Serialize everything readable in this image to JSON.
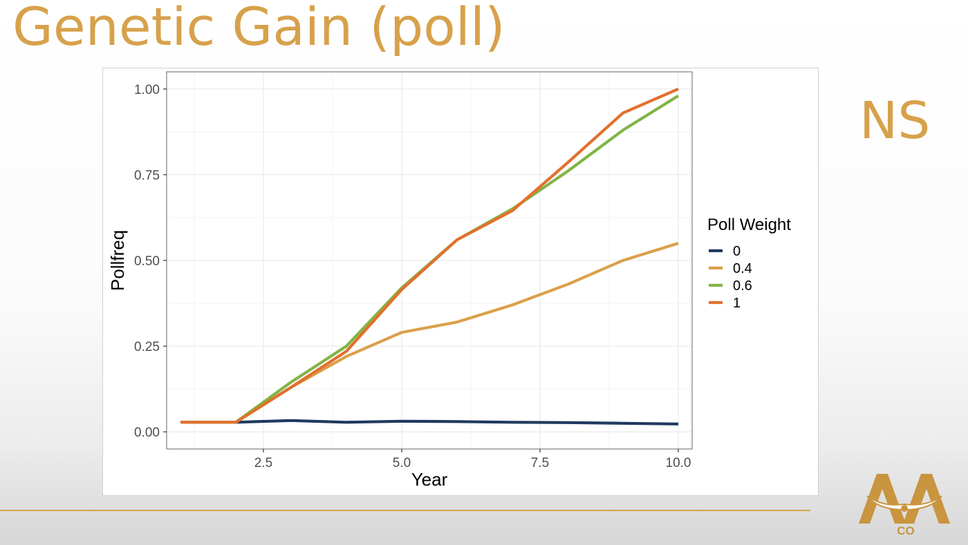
{
  "slide": {
    "title": "Genetic Gain (poll)",
    "side_label": "NS",
    "logo_text": "CO"
  },
  "colors": {
    "accent": "#d7a14b",
    "series_0": "#1f3a5f",
    "series_0_4": "#dba04a",
    "series_0_6": "#82b446",
    "series_1": "#e2702e",
    "grid": "#ebebeb",
    "panel_border": "#7f7f7f"
  },
  "chart_data": {
    "type": "line",
    "title": "",
    "xlabel": "Year",
    "ylabel": "Pollfreq",
    "xlim": [
      0.75,
      10.25
    ],
    "ylim": [
      -0.05,
      1.05
    ],
    "x_ticks": [
      2.5,
      5.0,
      7.5,
      10.0
    ],
    "x_tick_labels": [
      "2.5",
      "5.0",
      "7.5",
      "10.0"
    ],
    "y_ticks": [
      0.0,
      0.25,
      0.5,
      0.75,
      1.0
    ],
    "y_tick_labels": [
      "0.00",
      "0.25",
      "0.50",
      "0.75",
      "1.00"
    ],
    "grid": true,
    "legend": {
      "title": "Poll Weight",
      "placement": "right"
    },
    "x": [
      1,
      2,
      3,
      4,
      5,
      6,
      7,
      8,
      9,
      10
    ],
    "series": [
      {
        "name": "0",
        "color_key": "series_0",
        "values": [
          0.028,
          0.028,
          0.033,
          0.028,
          0.031,
          0.03,
          0.028,
          0.027,
          0.025,
          0.023
        ]
      },
      {
        "name": "0.4",
        "color_key": "series_0_4",
        "values": [
          0.028,
          0.028,
          0.13,
          0.22,
          0.29,
          0.32,
          0.37,
          0.43,
          0.5,
          0.55
        ]
      },
      {
        "name": "0.6",
        "color_key": "series_0_6",
        "values": [
          0.028,
          0.028,
          0.145,
          0.25,
          0.42,
          0.56,
          0.65,
          0.76,
          0.88,
          0.98
        ]
      },
      {
        "name": "1",
        "color_key": "series_1",
        "values": [
          0.028,
          0.028,
          0.13,
          0.235,
          0.415,
          0.56,
          0.645,
          0.785,
          0.93,
          1.0
        ]
      }
    ]
  }
}
